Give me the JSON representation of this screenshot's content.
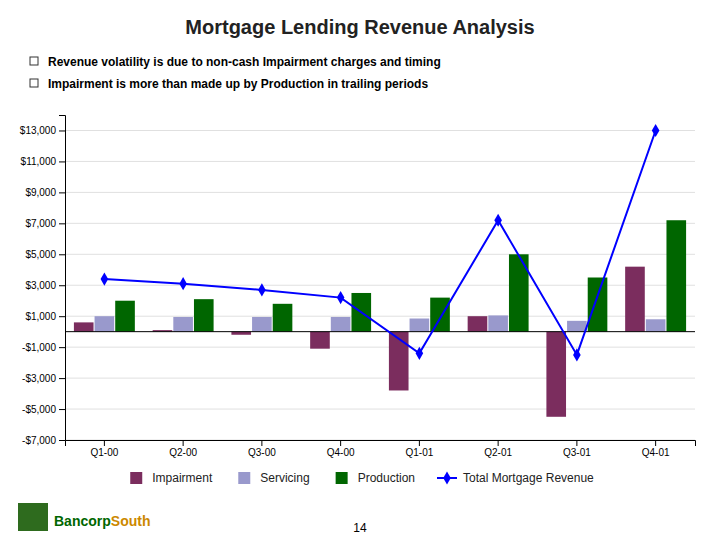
{
  "chart_data": {
    "type": "bar",
    "title": "Mortgage Lending Revenue Analysis",
    "annotations": [
      "Revenue volatility is due to non-cash Impairment charges and timing",
      "Impairment is more than made up by Production in trailing periods",
      "Bancorp",
      "South",
      "14"
    ],
    "categories": [
      "Q1-00",
      "Q2-00",
      "Q3-00",
      "Q4-00",
      "Q1-01",
      "Q2-01",
      "Q3-01",
      "Q4-01"
    ],
    "series": [
      {
        "name": "Impairment",
        "type": "bar",
        "color": "#7B2D5E",
        "values": [
          600,
          100,
          -200,
          -1100,
          -3800,
          1000,
          -5500,
          4200
        ]
      },
      {
        "name": "Servicing",
        "type": "bar",
        "color": "#9999CC",
        "values": [
          1000,
          950,
          950,
          950,
          850,
          1050,
          700,
          800
        ]
      },
      {
        "name": "Production",
        "type": "bar",
        "color": "#006600",
        "values": [
          2000,
          2100,
          1800,
          2500,
          2200,
          5000,
          3500,
          7200
        ]
      },
      {
        "name": "Total Mortgage Revenue",
        "type": "line",
        "color": "#0000FF",
        "marker": "diamond",
        "line_style": "solid",
        "values": [
          3400,
          3100,
          2700,
          2200,
          -1400,
          7200,
          -1500,
          13000
        ]
      }
    ],
    "ylim": [
      -7000,
      14000
    ],
    "yticks": [
      {
        "value": -7000,
        "label": "-$7,000"
      },
      {
        "value": -5000,
        "label": "-$5,000"
      },
      {
        "value": -3000,
        "label": "-$3,000"
      },
      {
        "value": -1000,
        "label": "-$1,000"
      },
      {
        "value": 1000,
        "label": "$1,000"
      },
      {
        "value": 3000,
        "label": "$3,000"
      },
      {
        "value": 5000,
        "label": "$5,000"
      },
      {
        "value": 7000,
        "label": "$7,000"
      },
      {
        "value": 9000,
        "label": "$9,000"
      },
      {
        "value": 11000,
        "label": "$11,000"
      },
      {
        "value": 13000,
        "label": "$13,000"
      }
    ],
    "grid": true,
    "legend": "bottom"
  }
}
